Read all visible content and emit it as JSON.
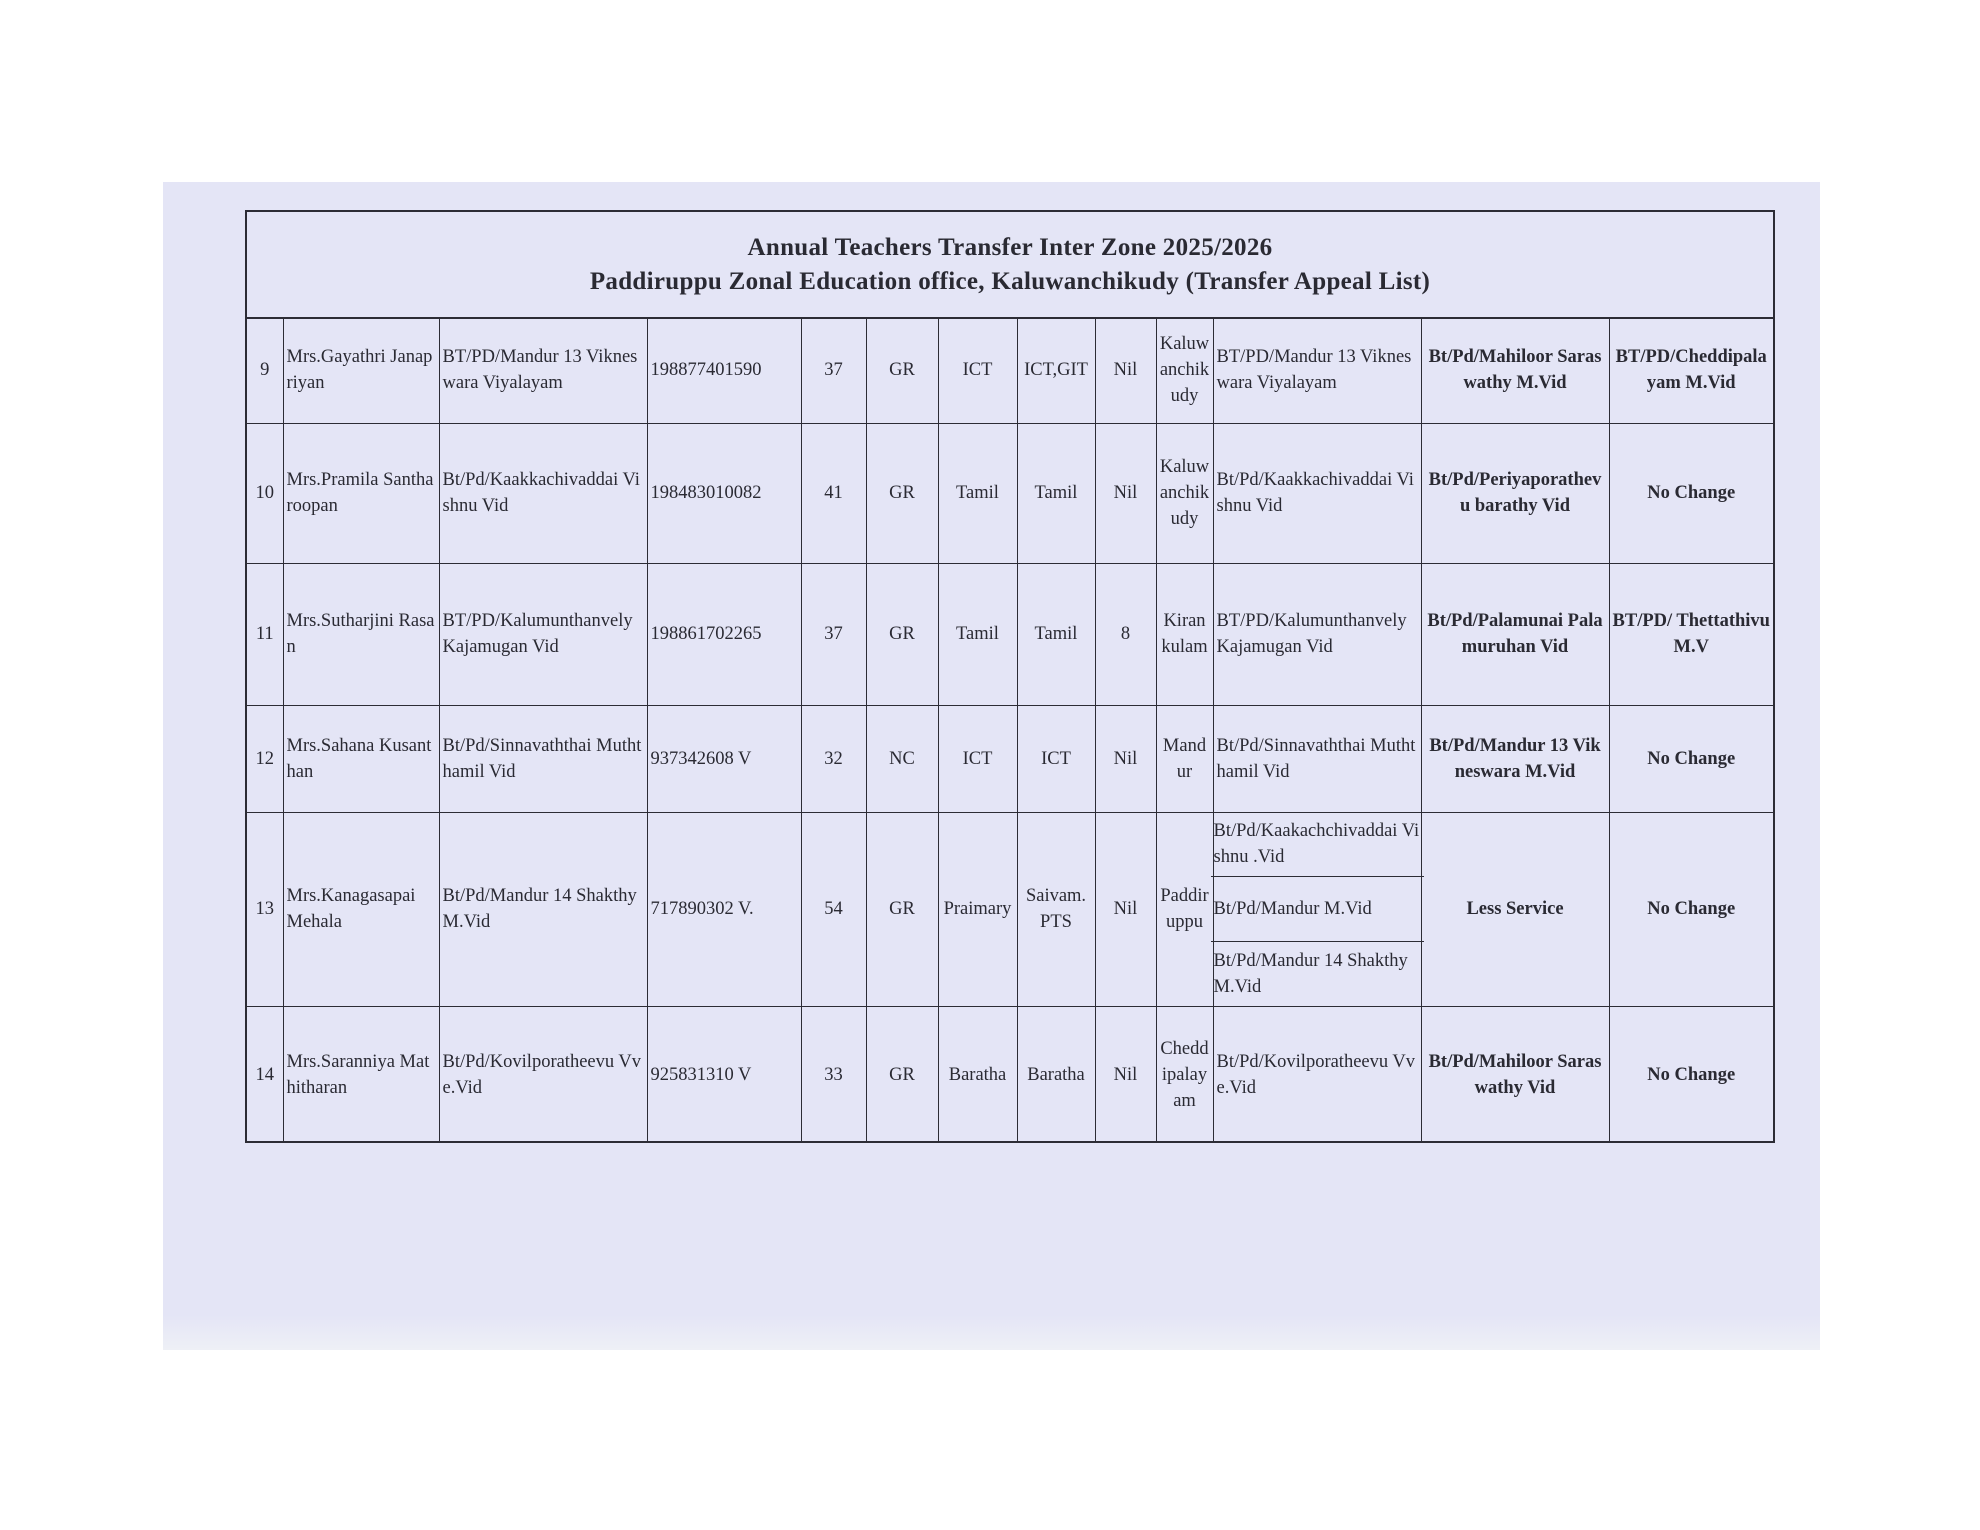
{
  "document": {
    "title_line1": "Annual Teachers Transfer Inter  Zone 2025/2026",
    "title_line2": "Paddiruppu Zonal Education office, Kaluwanchikudy   (Transfer Appeal List)"
  },
  "rows": [
    {
      "no": "9",
      "name": "Mrs.Gayathri Janapriyan",
      "school": "BT/PD/Mandur 13 Vikneswara Viyalayam",
      "nic": "198877401590",
      "age": "37",
      "grade": "GR",
      "subject": "ICT",
      "teaching": "ICT,GIT",
      "col9": "Nil",
      "zone": "Kaluwanchikudy",
      "preferences": [
        "BT/PD/Mandur 13 Vikneswara Viyalayam"
      ],
      "decision": "Bt/Pd/Mahiloor Saraswathy M.Vid",
      "appeal": "BT/PD/Cheddipalayam M.Vid"
    },
    {
      "no": "10",
      "name": "Mrs.Pramila Santharoopan",
      "school": "Bt/Pd/Kaakkachivaddai Vishnu Vid",
      "nic": "198483010082",
      "age": "41",
      "grade": "GR",
      "subject": "Tamil",
      "teaching": "Tamil",
      "col9": "Nil",
      "zone": "Kaluwanchikudy",
      "preferences": [
        "Bt/Pd/Kaakkachivaddai Vishnu Vid"
      ],
      "decision": "Bt/Pd/Periyaporathevu barathy Vid",
      "appeal": "No  Change"
    },
    {
      "no": "11",
      "name": "Mrs.Sutharjini Rasan",
      "school": "BT/PD/Kalumunthanvely Kajamugan Vid",
      "nic": "198861702265",
      "age": "37",
      "grade": "GR",
      "subject": "Tamil",
      "teaching": "Tamil",
      "col9": "8",
      "zone": "Kirankulam",
      "preferences": [
        "BT/PD/Kalumunthanvely Kajamugan Vid"
      ],
      "decision": "Bt/Pd/Palamunai Palamuruhan Vid",
      "appeal": "BT/PD/ Thettathivu M.V"
    },
    {
      "no": "12",
      "name": "Mrs.Sahana Kusanthan",
      "school": "Bt/Pd/Sinnavaththai Muththamil Vid",
      "nic": "937342608 V",
      "age": "32",
      "grade": "NC",
      "subject": "ICT",
      "teaching": "ICT",
      "col9": "Nil",
      "zone": "Mandur",
      "preferences": [
        "Bt/Pd/Sinnavaththai Muththamil Vid"
      ],
      "decision": "Bt/Pd/Mandur 13 Vikneswara M.Vid",
      "appeal": "No  Change"
    },
    {
      "no": "13",
      "name": "Mrs.Kanagasapai Mehala",
      "school": "Bt/Pd/Mandur 14 Shakthy M.Vid",
      "nic": "717890302 V.",
      "age": "54",
      "grade": "GR",
      "subject": "Praimary",
      "teaching": "Saivam. PTS",
      "col9": "Nil",
      "zone": "Paddiruppu",
      "preferences": [
        "Bt/Pd/Kaakachchivaddai Vishnu .Vid",
        "Bt/Pd/Mandur M.Vid",
        "Bt/Pd/Mandur 14 Shakthy M.Vid"
      ],
      "decision": "Less Service",
      "appeal": "No  Change"
    },
    {
      "no": "14",
      "name": "Mrs.Saranniya Mathitharan",
      "school": "Bt/Pd/Kovilporatheevu Vve.Vid",
      "nic": "925831310 V",
      "age": "33",
      "grade": "GR",
      "subject": "Baratha",
      "teaching": "Baratha",
      "col9": "Nil",
      "zone": "Cheddipalayam",
      "preferences": [
        "Bt/Pd/Kovilporatheevu Vve.Vid"
      ],
      "decision": "Bt/Pd/Mahiloor Saraswathy Vid",
      "appeal": "No  Change"
    }
  ]
}
